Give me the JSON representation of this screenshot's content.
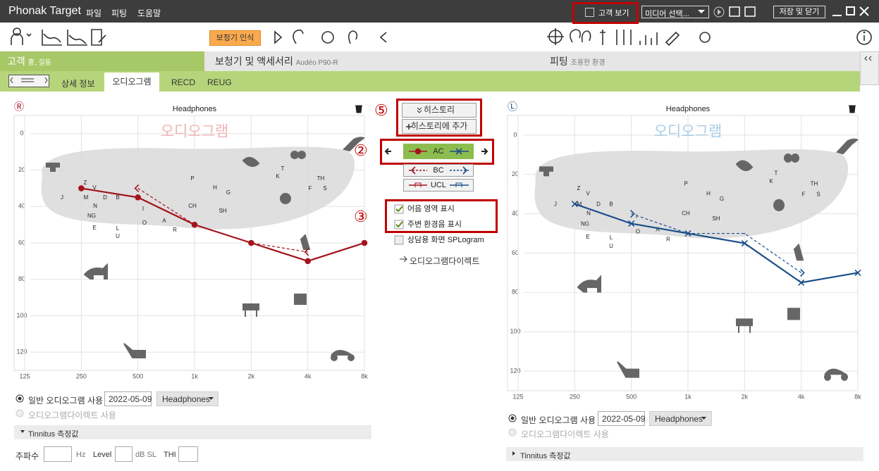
{
  "title_bar": {
    "app": "Phonak Target",
    "menus": [
      "파일",
      "피팅",
      "도움말"
    ],
    "customer_view": "고객 보기",
    "media_select": "미디어 선택...",
    "save_close": "저장 및 닫기"
  },
  "toolbar": {
    "detect": "보청기 인식"
  },
  "sections": [
    {
      "title": "고객",
      "detail": "홍, 길동"
    },
    {
      "title": "보청기 및 액세서리",
      "detail": "Audéo P90-R"
    },
    {
      "title": "피팅",
      "detail": "조용한 환경"
    }
  ],
  "tabs": [
    "상세 정보",
    "오디오그램",
    "RECD",
    "REUG"
  ],
  "speech_sounds": [
    "Z",
    "V",
    "J",
    "M",
    "D",
    "B",
    "N",
    "NG",
    "E",
    "L",
    "U",
    "I",
    "O",
    "A",
    "R",
    "P",
    "H",
    "G",
    "CH",
    "SH",
    "K",
    "T",
    "TH",
    "F",
    "S"
  ],
  "audiograms": [
    {
      "side": "Ⓡ",
      "title": "Headphones",
      "watermark": "오디오그램",
      "color": "#a3141c",
      "watermark_color": "#f0b4b4",
      "xscale": "log",
      "xlim": [
        125,
        8000
      ],
      "xticks": [
        125,
        250,
        500,
        {
          "value": 1000,
          "label": "1k"
        },
        {
          "value": 2000,
          "label": "2k"
        },
        {
          "value": 4000,
          "label": "4k"
        },
        {
          "value": 8000,
          "label": "8k"
        }
      ],
      "ylim": [
        -10,
        130
      ],
      "yticks": [
        0,
        20,
        40,
        60,
        80,
        100,
        120
      ],
      "grid": true,
      "ac": {
        "marker": "circle",
        "x": [
          250,
          500,
          1000,
          2000,
          4000,
          8000
        ],
        "values": [
          30,
          35,
          50,
          60,
          70,
          60
        ]
      },
      "bc": {
        "marker": "bracket-left",
        "x": [
          500,
          1000,
          2000,
          4000
        ],
        "values": [
          30,
          50,
          60,
          65
        ]
      }
    },
    {
      "side": "Ⓛ",
      "title": "Headphones",
      "watermark": "오디오그램",
      "color": "#1b4f8a",
      "watermark_color": "#a9cde6",
      "xscale": "log",
      "xlim": [
        125,
        8000
      ],
      "xticks": [
        125,
        250,
        500,
        {
          "value": 1000,
          "label": "1k"
        },
        {
          "value": 2000,
          "label": "2k"
        },
        {
          "value": 4000,
          "label": "4k"
        },
        {
          "value": 8000,
          "label": "8k"
        }
      ],
      "ylim": [
        -10,
        130
      ],
      "yticks": [
        0,
        20,
        40,
        60,
        80,
        100,
        120
      ],
      "grid": true,
      "ac": {
        "marker": "cross",
        "x": [
          250,
          500,
          1000,
          2000,
          4000,
          8000
        ],
        "values": [
          35,
          45,
          50,
          55,
          75,
          70
        ]
      },
      "bc": {
        "marker": "bracket-right",
        "x": [
          500,
          1000,
          2000,
          4000
        ],
        "values": [
          40,
          50,
          50,
          70
        ]
      }
    }
  ],
  "middle": {
    "callouts": [
      "⑤",
      "②",
      "③"
    ],
    "history": "히스토리",
    "add_history": "히스토리에 추가",
    "legend": [
      "AC",
      "BC",
      "UCL"
    ],
    "checkboxes": [
      {
        "label": "어음 영역 표시",
        "checked": true
      },
      {
        "label": "주변 환경음 표시",
        "checked": true
      },
      {
        "label": "상담용 화면 SPLogram",
        "checked": false
      }
    ],
    "link": "오디오그램다이렉트"
  },
  "ear_options": {
    "normal": "일반 오디오그램 사용",
    "date": "2022-05-09",
    "transducer": "Headphones",
    "direct": "오디오그램다이렉트 사용",
    "tinnitus": "Tinnitus 측정값"
  },
  "tinnitus_fields": {
    "frequency": "주파수",
    "hz": "Hz",
    "level": "Level",
    "db": "dB SL",
    "thi": "THI"
  }
}
